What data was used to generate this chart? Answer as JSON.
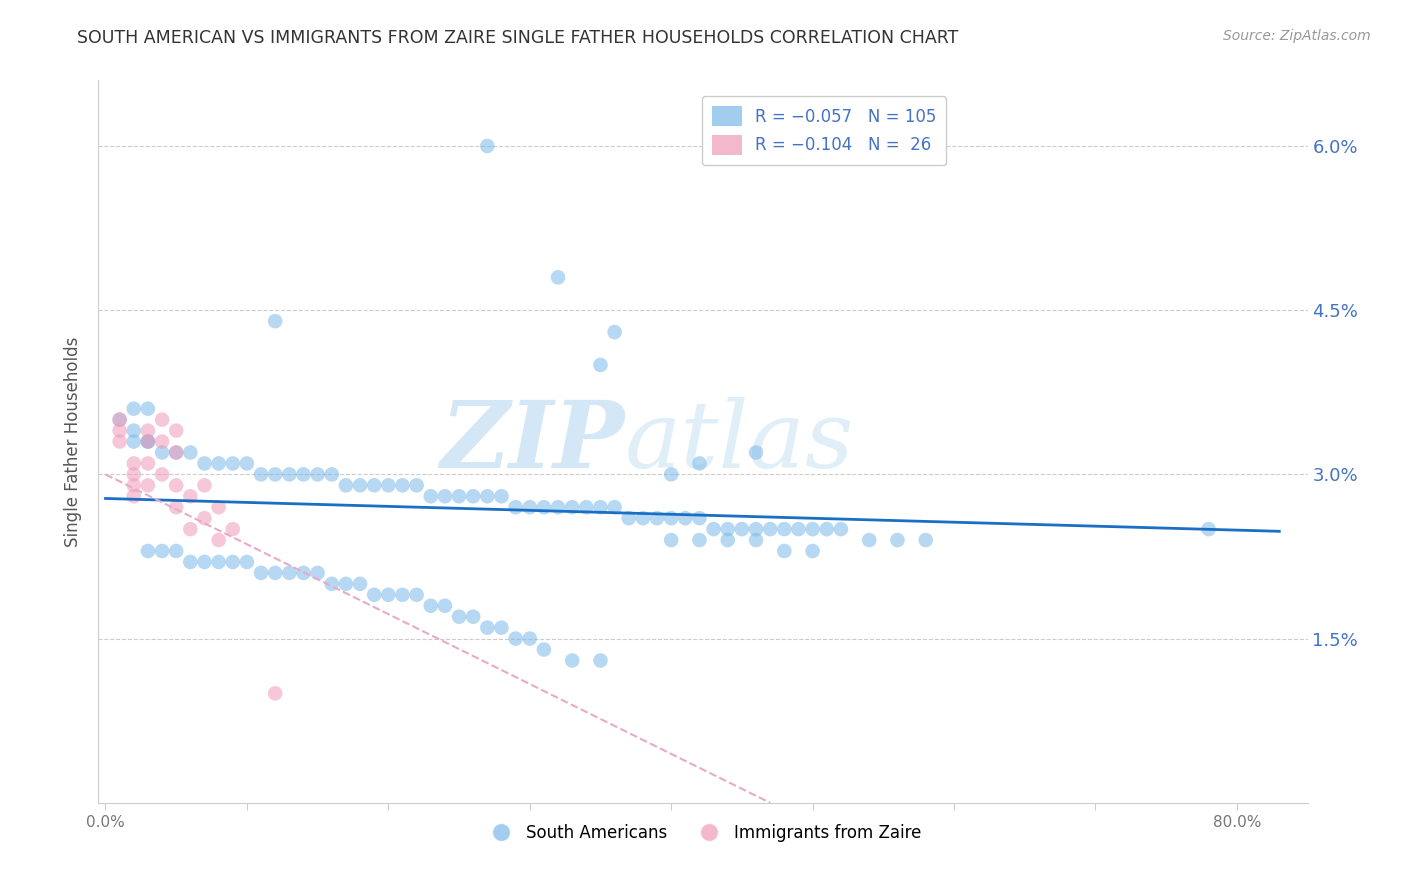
{
  "title": "SOUTH AMERICAN VS IMMIGRANTS FROM ZAIRE SINGLE FATHER HOUSEHOLDS CORRELATION CHART",
  "source": "Source: ZipAtlas.com",
  "ylabel_label": "Single Father Households",
  "ylim": [
    0.0,
    0.066
  ],
  "xlim": [
    -0.005,
    0.85
  ],
  "legend_label1": "South Americans",
  "legend_label2": "Immigrants from Zaire",
  "blue_color": "#7ab8e8",
  "pink_color": "#f09ab8",
  "trendline_blue_color": "#1a6fc4",
  "trendline_pink_color": "#e8aac8",
  "watermark": "ZIPatlas",
  "watermark_color": "#c8dff0",
  "blue_trendline_x": [
    0.0,
    0.83
  ],
  "blue_trendline_y": [
    0.0278,
    0.0248
  ],
  "pink_trendline_x": [
    0.0,
    0.47
  ],
  "pink_trendline_y": [
    0.03,
    0.0
  ],
  "blue_scatter_x": [
    0.27,
    0.32,
    0.12,
    0.36,
    0.35,
    0.02,
    0.03,
    0.01,
    0.02,
    0.02,
    0.03,
    0.03,
    0.04,
    0.05,
    0.06,
    0.07,
    0.08,
    0.09,
    0.1,
    0.11,
    0.12,
    0.13,
    0.14,
    0.15,
    0.16,
    0.17,
    0.18,
    0.19,
    0.2,
    0.21,
    0.22,
    0.23,
    0.24,
    0.25,
    0.26,
    0.27,
    0.28,
    0.29,
    0.3,
    0.31,
    0.32,
    0.33,
    0.34,
    0.35,
    0.36,
    0.37,
    0.38,
    0.39,
    0.4,
    0.41,
    0.42,
    0.43,
    0.44,
    0.45,
    0.46,
    0.47,
    0.48,
    0.49,
    0.5,
    0.51,
    0.52,
    0.54,
    0.56,
    0.58,
    0.4,
    0.42,
    0.44,
    0.46,
    0.48,
    0.5,
    0.03,
    0.04,
    0.05,
    0.06,
    0.07,
    0.08,
    0.09,
    0.1,
    0.11,
    0.12,
    0.13,
    0.14,
    0.15,
    0.16,
    0.17,
    0.18,
    0.19,
    0.2,
    0.21,
    0.22,
    0.23,
    0.24,
    0.25,
    0.26,
    0.27,
    0.28,
    0.29,
    0.3,
    0.31,
    0.33,
    0.35,
    0.78,
    0.4,
    0.42,
    0.46
  ],
  "blue_scatter_y": [
    0.06,
    0.048,
    0.044,
    0.043,
    0.04,
    0.036,
    0.036,
    0.035,
    0.034,
    0.033,
    0.033,
    0.033,
    0.032,
    0.032,
    0.032,
    0.031,
    0.031,
    0.031,
    0.031,
    0.03,
    0.03,
    0.03,
    0.03,
    0.03,
    0.03,
    0.029,
    0.029,
    0.029,
    0.029,
    0.029,
    0.029,
    0.028,
    0.028,
    0.028,
    0.028,
    0.028,
    0.028,
    0.027,
    0.027,
    0.027,
    0.027,
    0.027,
    0.027,
    0.027,
    0.027,
    0.026,
    0.026,
    0.026,
    0.026,
    0.026,
    0.026,
    0.025,
    0.025,
    0.025,
    0.025,
    0.025,
    0.025,
    0.025,
    0.025,
    0.025,
    0.025,
    0.024,
    0.024,
    0.024,
    0.024,
    0.024,
    0.024,
    0.024,
    0.023,
    0.023,
    0.023,
    0.023,
    0.023,
    0.022,
    0.022,
    0.022,
    0.022,
    0.022,
    0.021,
    0.021,
    0.021,
    0.021,
    0.021,
    0.02,
    0.02,
    0.02,
    0.019,
    0.019,
    0.019,
    0.019,
    0.018,
    0.018,
    0.017,
    0.017,
    0.016,
    0.016,
    0.015,
    0.015,
    0.014,
    0.013,
    0.013,
    0.025,
    0.03,
    0.031,
    0.032
  ],
  "pink_scatter_x": [
    0.01,
    0.01,
    0.01,
    0.02,
    0.02,
    0.02,
    0.02,
    0.03,
    0.03,
    0.03,
    0.03,
    0.04,
    0.04,
    0.04,
    0.05,
    0.05,
    0.05,
    0.05,
    0.06,
    0.06,
    0.07,
    0.07,
    0.08,
    0.08,
    0.09,
    0.12
  ],
  "pink_scatter_y": [
    0.035,
    0.034,
    0.033,
    0.031,
    0.03,
    0.029,
    0.028,
    0.034,
    0.033,
    0.031,
    0.029,
    0.035,
    0.033,
    0.03,
    0.034,
    0.032,
    0.029,
    0.027,
    0.028,
    0.025,
    0.029,
    0.026,
    0.027,
    0.024,
    0.025,
    0.01
  ]
}
